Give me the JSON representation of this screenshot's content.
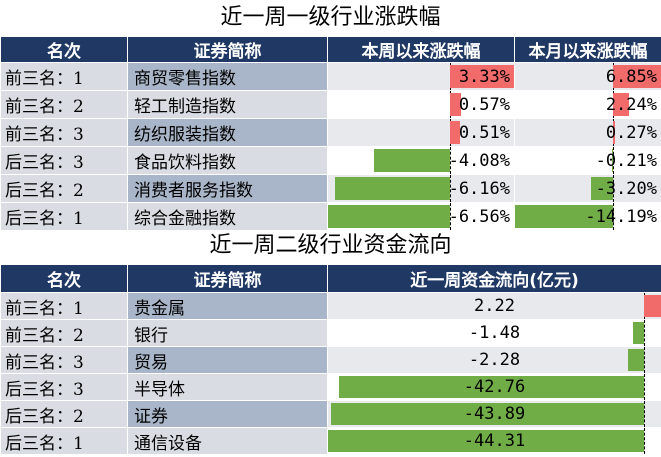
{
  "chart_data": [
    {
      "type": "table",
      "title": "近一周一级行业涨跌幅",
      "columns": [
        "名次",
        "证券简称",
        "本周以来涨跌幅",
        "本月以来涨跌幅"
      ],
      "rows": [
        {
          "rank": "前三名：1",
          "name": "商贸零售指数",
          "week": "3.33%",
          "month": "6.85%",
          "week_v": 3.33,
          "month_v": 6.85
        },
        {
          "rank": "前三名：2",
          "name": "轻工制造指数",
          "week": "0.57%",
          "month": "2.24%",
          "week_v": 0.57,
          "month_v": 2.24
        },
        {
          "rank": "前三名：3",
          "name": "纺织服装指数",
          "week": "0.51%",
          "month": "0.27%",
          "week_v": 0.51,
          "month_v": 0.27
        },
        {
          "rank": "后三名：3",
          "name": "食品饮料指数",
          "week": "-4.08%",
          "month": "-0.21%",
          "week_v": -4.08,
          "month_v": -0.21
        },
        {
          "rank": "后三名：2",
          "name": "消费者服务指数",
          "week": "-6.16%",
          "month": "-3.20%",
          "week_v": -6.16,
          "month_v": -3.2
        },
        {
          "rank": "后三名：1",
          "name": "综合金融指数",
          "week": "-6.56%",
          "month": "-14.19%",
          "week_v": -6.56,
          "month_v": -14.19
        }
      ],
      "colors": {
        "positive": "#f26b6b",
        "negative": "#70ad47",
        "header": "#1f3864"
      }
    },
    {
      "type": "table",
      "title": "近一周二级行业资金流向",
      "columns": [
        "名次",
        "证券简称",
        "近一周资金流向(亿元)"
      ],
      "rows": [
        {
          "rank": "前三名：1",
          "name": "贵金属",
          "flow": "2.22",
          "flow_v": 2.22
        },
        {
          "rank": "前三名：2",
          "name": "银行",
          "flow": "-1.48",
          "flow_v": -1.48
        },
        {
          "rank": "前三名：3",
          "name": "贸易",
          "flow": "-2.28",
          "flow_v": -2.28
        },
        {
          "rank": "后三名：3",
          "name": "半导体",
          "flow": "-42.76",
          "flow_v": -42.76
        },
        {
          "rank": "后三名：2",
          "name": "证券",
          "flow": "-43.89",
          "flow_v": -43.89
        },
        {
          "rank": "后三名：1",
          "name": "通信设备",
          "flow": "-44.31",
          "flow_v": -44.31
        }
      ],
      "colors": {
        "positive": "#f26b6b",
        "negative": "#70ad47",
        "header": "#1f3864"
      }
    }
  ]
}
